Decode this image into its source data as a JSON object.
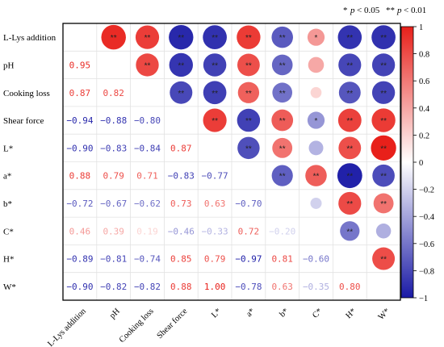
{
  "chart_data": {
    "type": "heatmap",
    "variables": [
      "L-Lys addition",
      "pH",
      "Cooking loss",
      "Shear force",
      "L*",
      "a*",
      "b*",
      "C*",
      "H*",
      "W*"
    ],
    "lower_labels": [
      [
        null,
        null,
        null,
        null,
        null,
        null,
        null,
        null,
        null,
        null
      ],
      [
        "0.95",
        null,
        null,
        null,
        null,
        null,
        null,
        null,
        null,
        null
      ],
      [
        "0.87",
        "0.82",
        null,
        null,
        null,
        null,
        null,
        null,
        null,
        null
      ],
      [
        "−0.94",
        "−0.88",
        "−0.80",
        null,
        null,
        null,
        null,
        null,
        null,
        null
      ],
      [
        "−0.90",
        "−0.83",
        "−0.84",
        "0.87",
        null,
        null,
        null,
        null,
        null,
        null
      ],
      [
        "0.88",
        "0.79",
        "0.71",
        "−0.83",
        "−0.77",
        null,
        null,
        null,
        null,
        null
      ],
      [
        "−0.72",
        "−0.67",
        "−0.62",
        "0.73",
        "0.63",
        "−0.70",
        null,
        null,
        null,
        null
      ],
      [
        "0.46",
        "0.39",
        "0.19",
        "−0.46",
        "−0.33",
        "0.72",
        "−0.20",
        null,
        null,
        null
      ],
      [
        "−0.89",
        "−0.81",
        "−0.74",
        "0.85",
        "0.79",
        "−0.97",
        "0.81",
        "−0.60",
        null,
        null
      ],
      [
        "−0.90",
        "−0.82",
        "−0.82",
        "0.88",
        "1.00",
        "−0.78",
        "0.63",
        "−0.35",
        "0.80",
        null
      ]
    ],
    "significance": [
      [
        null,
        null,
        null,
        null,
        null,
        null,
        null,
        null,
        null,
        null
      ],
      [
        "**",
        null,
        null,
        null,
        null,
        null,
        null,
        null,
        null,
        null
      ],
      [
        "**",
        "**",
        null,
        null,
        null,
        null,
        null,
        null,
        null,
        null
      ],
      [
        "**",
        "**",
        "**",
        null,
        null,
        null,
        null,
        null,
        null,
        null
      ],
      [
        "**",
        "**",
        "**",
        "**",
        null,
        null,
        null,
        null,
        null,
        null
      ],
      [
        "**",
        "**",
        "**",
        "**",
        "**",
        null,
        null,
        null,
        null,
        null
      ],
      [
        "**",
        "**",
        "**",
        "**",
        "**",
        "**",
        null,
        null,
        null,
        null
      ],
      [
        "*",
        "",
        "",
        "*",
        "",
        "**",
        "",
        null,
        null,
        null
      ],
      [
        "**",
        "**",
        "**",
        "**",
        "**",
        "**",
        "**",
        "**",
        null,
        null
      ],
      [
        "**",
        "**",
        "**",
        "**",
        "**",
        "**",
        "**",
        "",
        "**",
        null
      ]
    ],
    "colorbar": {
      "min": -1,
      "max": 1,
      "ticks": [
        "−1",
        "−0.8",
        "−0.6",
        "−0.4",
        "−0.2",
        "0",
        "0.2",
        "0.4",
        "0.6",
        "0.8",
        "1"
      ],
      "colors": [
        "#1a1aa6",
        "#ffffff",
        "#e8201a"
      ]
    },
    "significance_legend": {
      "single_star": "*",
      "single_text": "p",
      "single_cond": "< 0.05",
      "double_star": "**",
      "double_text": "p",
      "double_cond": "< 0.01"
    }
  }
}
